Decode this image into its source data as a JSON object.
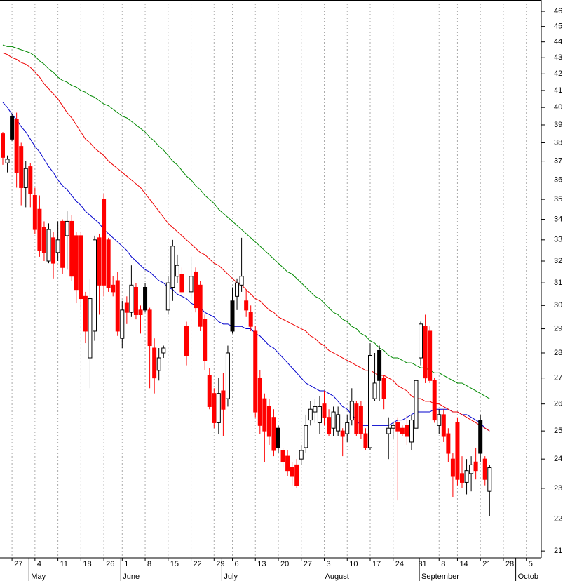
{
  "chart_data": {
    "type": "candlestick",
    "log_scale": true,
    "grid": true,
    "ylim": [
      20.79,
      46.76
    ],
    "yticks": [
      21,
      22,
      23,
      24,
      25,
      26,
      27,
      28,
      29,
      30,
      31,
      32,
      33,
      34,
      35,
      36,
      37,
      38,
      39,
      40,
      41,
      42,
      43,
      44,
      45,
      46
    ],
    "categories": [
      null,
      null,
      "27",
      null,
      null,
      null,
      null,
      "4",
      null,
      null,
      null,
      null,
      "11",
      null,
      null,
      null,
      null,
      "18",
      null,
      null,
      null,
      null,
      "26",
      null,
      null,
      null,
      "1",
      null,
      null,
      null,
      null,
      "8",
      null,
      null,
      null,
      null,
      "15",
      null,
      null,
      null,
      null,
      "22",
      null,
      null,
      null,
      null,
      "29",
      null,
      null,
      null,
      "6",
      null,
      null,
      null,
      null,
      "13",
      null,
      null,
      null,
      null,
      "20",
      null,
      null,
      null,
      null,
      "27",
      null,
      null,
      null,
      null,
      "3",
      null,
      null,
      null,
      null,
      "10",
      null,
      null,
      null,
      null,
      "17",
      null,
      null,
      null,
      null,
      "24",
      null,
      null,
      null,
      null,
      "31",
      null,
      null,
      null,
      null,
      "8",
      null,
      null,
      null,
      "14",
      null,
      null,
      null,
      null,
      "21",
      null,
      null,
      null,
      null,
      "28",
      null,
      null,
      null,
      null,
      "5",
      null,
      null
    ],
    "xticks_major": [
      {
        "value": 6,
        "label": "May"
      },
      {
        "value": 26,
        "label": "June"
      },
      {
        "value": 48,
        "label": "July"
      },
      {
        "value": 70,
        "label": "August"
      },
      {
        "value": 91,
        "label": "September"
      },
      {
        "value": 112,
        "label": "Octob"
      }
    ],
    "candle_colors": {
      "rise": "#ffffff",
      "fall": "#ff0000",
      "fall_above_previous": "#000000",
      "outline": "#000000"
    },
    "open": [
      38.5,
      36.9,
      39.5,
      39.3,
      37.8,
      35.6,
      36.7,
      35.2,
      34.5,
      33.6,
      32.0,
      33.1,
      32.4,
      33.9,
      33.2,
      33.9,
      33.2,
      33.2,
      30.4,
      27.8,
      28.9,
      33.1,
      35.0,
      33.0,
      30.9,
      31.1,
      28.6,
      30.1,
      29.7,
      30.8,
      29.8,
      30.8,
      29.8,
      28.2,
      27.3,
      28.0,
      29.8,
      30.8,
      31.3,
      31.4,
      29.1,
      30.6,
      31.5,
      30.9,
      29.4,
      27.1,
      26.4,
      25.3,
      26.5,
      26.2,
      30.2,
      30.4,
      30.9,
      30.2,
      29.7,
      28.9,
      27.0,
      26.2,
      25.9,
      25.5,
      25.1,
      24.3,
      24.1,
      23.7,
      23.8,
      24.0,
      24.4,
      25.4,
      25.7,
      25.3,
      26.0,
      25.5,
      25.1,
      25.0,
      25.0,
      24.9,
      25.4,
      26.0,
      25.9,
      24.9,
      24.4,
      26.2,
      28.1,
      27.0,
      24.9,
      25.1,
      25.3,
      25.1,
      25.2,
      24.6,
      25.1,
      27.8,
      29.1,
      28.9,
      26.9,
      25.2,
      25.6,
      24.9,
      24.0,
      25.3,
      23.5,
      23.2,
      23.5,
      23.9,
      25.4,
      24.0,
      22.9,
      null,
      null,
      null,
      null,
      null,
      null,
      null,
      null,
      null,
      null
    ],
    "high": [
      38.6,
      37.3,
      39.6,
      39.7,
      38.0,
      37.0,
      36.9,
      35.6,
      35.2,
      33.9,
      33.8,
      33.4,
      33.9,
      34.0,
      34.4,
      34.2,
      33.4,
      33.4,
      30.6,
      31.2,
      33.2,
      33.3,
      35.3,
      33.1,
      31.3,
      31.5,
      30.2,
      30.4,
      31.8,
      31.0,
      30.0,
      31.0,
      29.9,
      28.6,
      28.2,
      28.3,
      31.3,
      33.0,
      32.3,
      31.7,
      29.3,
      32.2,
      31.7,
      31.1,
      29.6,
      27.4,
      26.6,
      27.0,
      27.2,
      28.3,
      30.8,
      31.2,
      33.1,
      30.7,
      30.0,
      29.1,
      27.3,
      26.4,
      26.2,
      25.8,
      25.2,
      24.4,
      24.3,
      23.9,
      24.0,
      24.5,
      25.6,
      26.1,
      26.2,
      26.3,
      26.5,
      25.8,
      25.9,
      25.9,
      25.1,
      25.6,
      26.6,
      26.1,
      26.1,
      25.1,
      28.4,
      28.0,
      28.3,
      27.1,
      25.5,
      25.3,
      25.5,
      25.2,
      25.6,
      25.6,
      27.2,
      29.3,
      29.6,
      29.1,
      27.0,
      25.8,
      25.8,
      25.1,
      24.2,
      25.5,
      24.1,
      24.0,
      24.1,
      24.4,
      25.6,
      24.1,
      23.8,
      null,
      null,
      null,
      null,
      null,
      null,
      null,
      null,
      null,
      null
    ],
    "low": [
      36.8,
      36.4,
      38.1,
      35.6,
      34.7,
      34.6,
      34.6,
      33.3,
      32.2,
      32.0,
      31.9,
      31.2,
      32.0,
      31.4,
      31.6,
      31.1,
      30.1,
      29.8,
      28.4,
      26.6,
      28.5,
      29.6,
      30.4,
      30.6,
      30.4,
      28.7,
      28.2,
      29.2,
      29.5,
      29.4,
      28.8,
      29.7,
      26.6,
      26.4,
      26.9,
      27.8,
      29.6,
      30.2,
      31.0,
      30.5,
      27.5,
      30.3,
      29.7,
      28.9,
      27.3,
      25.8,
      25.1,
      24.9,
      24.8,
      25.9,
      28.8,
      29.8,
      30.6,
      29.5,
      28.9,
      25.5,
      24.9,
      23.9,
      24.5,
      24.1,
      24.2,
      23.7,
      23.4,
      23.1,
      23.0,
      23.8,
      24.2,
      25.2,
      25.3,
      24.9,
      25.2,
      24.8,
      24.8,
      24.8,
      24.1,
      24.6,
      25.2,
      24.8,
      24.7,
      24.3,
      24.3,
      26.1,
      26.1,
      25.8,
      24.0,
      24.7,
      22.6,
      24.8,
      24.5,
      24.3,
      24.9,
      27.5,
      26.8,
      26.8,
      25.3,
      24.9,
      24.6,
      23.9,
      22.7,
      23.1,
      23.0,
      22.8,
      22.9,
      23.3,
      23.9,
      23.1,
      22.1,
      null,
      null,
      null,
      null,
      null,
      null,
      null,
      null,
      null,
      null
    ],
    "close": [
      37.2,
      37.1,
      38.2,
      36.4,
      35.6,
      36.6,
      35.3,
      33.5,
      32.5,
      32.4,
      33.5,
      31.9,
      33.0,
      31.7,
      33.9,
      31.3,
      30.7,
      30.3,
      28.9,
      30.3,
      33.0,
      30.9,
      30.9,
      30.8,
      30.6,
      28.9,
      29.8,
      29.7,
      30.9,
      29.6,
      29.6,
      29.8,
      28.3,
      27.0,
      27.8,
      28.2,
      31.0,
      32.7,
      31.8,
      30.6,
      27.9,
      31.3,
      29.9,
      29.1,
      27.7,
      25.9,
      25.3,
      26.4,
      25.8,
      28.0,
      28.9,
      31.0,
      31.3,
      29.8,
      29.1,
      25.7,
      25.2,
      25.0,
      24.8,
      24.3,
      24.4,
      23.9,
      23.6,
      23.4,
      23.1,
      24.3,
      25.2,
      25.8,
      25.9,
      25.9,
      25.5,
      24.9,
      25.7,
      25.6,
      24.8,
      25.3,
      26.1,
      24.9,
      24.9,
      24.4,
      27.9,
      26.8,
      26.9,
      26.2,
      25.1,
      25.2,
      25.0,
      24.9,
      24.8,
      25.4,
      26.9,
      29.2,
      27.0,
      26.9,
      25.4,
      25.6,
      24.8,
      24.2,
      23.4,
      23.3,
      23.2,
      23.6,
      23.8,
      23.6,
      24.2,
      23.3,
      23.7,
      null,
      null,
      null,
      null,
      null,
      null,
      null,
      null,
      null,
      null
    ],
    "lines": [
      {
        "color": "#0000cc",
        "values": [
          40.3,
          40.0,
          39.6,
          39.3,
          38.9,
          38.6,
          38.2,
          37.8,
          37.5,
          37.1,
          36.7,
          36.4,
          36.0,
          35.7,
          35.5,
          35.2,
          34.9,
          34.7,
          34.4,
          34.2,
          34.0,
          33.8,
          33.5,
          33.3,
          33.1,
          32.9,
          32.7,
          32.5,
          32.2,
          32.0,
          31.8,
          31.6,
          31.5,
          31.3,
          31.1,
          31.0,
          30.8,
          30.7,
          30.5,
          30.4,
          30.3,
          30.1,
          30.0,
          29.9,
          29.7,
          29.6,
          29.5,
          29.3,
          29.2,
          29.2,
          29.1,
          29.1,
          29.1,
          29.0,
          29.0,
          28.8,
          28.7,
          28.5,
          28.3,
          28.2,
          28.0,
          27.8,
          27.6,
          27.4,
          27.2,
          27.0,
          26.8,
          26.7,
          26.6,
          26.5,
          26.5,
          26.4,
          26.3,
          26.1,
          25.9,
          25.8,
          25.6,
          25.4,
          25.2,
          25.2,
          25.2,
          25.2,
          25.2,
          25.2,
          25.2,
          25.3,
          25.4,
          25.4,
          25.5,
          25.6,
          25.7,
          25.7,
          25.7,
          25.7,
          25.8,
          25.8,
          25.8,
          25.8,
          25.7,
          25.7,
          25.6,
          25.6,
          25.5,
          25.4,
          25.3,
          25.1,
          25.0,
          null,
          null,
          null,
          null,
          null,
          null,
          null,
          null,
          null,
          null
        ]
      },
      {
        "color": "#ee0000",
        "values": [
          43.3,
          43.2,
          43.0,
          42.9,
          42.7,
          42.6,
          42.4,
          42.1,
          41.8,
          41.4,
          41.1,
          40.8,
          40.5,
          40.1,
          39.7,
          39.4,
          39.0,
          38.6,
          38.2,
          38.0,
          37.7,
          37.5,
          37.3,
          37.0,
          36.8,
          36.6,
          36.4,
          36.2,
          36.0,
          35.8,
          35.6,
          35.3,
          35.0,
          34.7,
          34.4,
          34.1,
          33.8,
          33.6,
          33.4,
          33.2,
          33.0,
          32.8,
          32.6,
          32.4,
          32.3,
          32.1,
          31.9,
          31.8,
          31.6,
          31.4,
          31.2,
          31.0,
          30.9,
          30.7,
          30.5,
          30.3,
          30.2,
          30.0,
          29.8,
          29.7,
          29.5,
          29.4,
          29.3,
          29.2,
          29.1,
          29.0,
          28.9,
          28.7,
          28.6,
          28.4,
          28.3,
          28.1,
          28.0,
          27.9,
          27.8,
          27.7,
          27.6,
          27.5,
          27.4,
          27.3,
          27.3,
          27.2,
          27.1,
          27.1,
          27.0,
          26.9,
          26.7,
          26.6,
          26.5,
          26.3,
          26.2,
          26.2,
          26.1,
          26.1,
          26.0,
          26.0,
          25.9,
          25.8,
          25.7,
          25.7,
          25.6,
          25.5,
          25.4,
          25.3,
          25.2,
          25.1,
          25.0,
          null,
          null,
          null,
          null,
          null,
          null,
          null,
          null,
          null,
          null
        ]
      },
      {
        "color": "#008800",
        "values": [
          43.8,
          43.7,
          43.7,
          43.6,
          43.5,
          43.4,
          43.3,
          43.1,
          42.8,
          42.6,
          42.3,
          42.1,
          41.8,
          41.6,
          41.5,
          41.3,
          41.2,
          41.0,
          40.9,
          40.7,
          40.6,
          40.4,
          40.2,
          40.1,
          39.9,
          39.7,
          39.5,
          39.4,
          39.2,
          39.0,
          38.8,
          38.6,
          38.3,
          38.1,
          37.8,
          37.6,
          37.3,
          37.0,
          36.8,
          36.5,
          36.2,
          36.0,
          35.7,
          35.5,
          35.2,
          35.0,
          34.8,
          34.5,
          34.3,
          34.1,
          33.9,
          33.7,
          33.5,
          33.3,
          33.1,
          32.9,
          32.7,
          32.5,
          32.3,
          32.1,
          31.9,
          31.7,
          31.5,
          31.4,
          31.2,
          31.0,
          30.8,
          30.6,
          30.4,
          30.3,
          30.1,
          29.9,
          29.7,
          29.6,
          29.4,
          29.3,
          29.1,
          29.0,
          28.8,
          28.7,
          28.5,
          28.4,
          28.2,
          28.1,
          27.9,
          27.8,
          27.8,
          27.7,
          27.6,
          27.6,
          27.5,
          27.4,
          27.4,
          27.3,
          27.2,
          27.2,
          27.1,
          27.0,
          26.9,
          26.8,
          26.8,
          26.7,
          26.6,
          26.5,
          26.4,
          26.3,
          26.2,
          null,
          null,
          null,
          null,
          null,
          null,
          null,
          null,
          null,
          null
        ]
      }
    ]
  }
}
